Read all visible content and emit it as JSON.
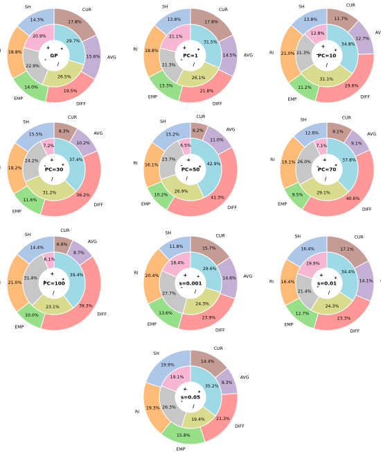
{
  "colors": {
    "AVG": "#c5b0d5",
    "DIFF": "#ff9896",
    "EMP": "#98df8a",
    "RI": "#ffbb78",
    "SH": "#aec7e8",
    "CUR": "#c49c94",
    "*": "#9edae5",
    "/": "#dbdb8d",
    "-": "#c7c7c7",
    "+": "#f7b6d2"
  },
  "chart_data": [
    {
      "type": "pie",
      "title": "GP",
      "outer": {
        "labels": [
          "CUR",
          "AVG",
          "DIFF",
          "EMP",
          "RI",
          "SH"
        ],
        "values": [
          17.8,
          15.6,
          19.5,
          14.0,
          18.8,
          14.3
        ]
      },
      "inner": {
        "labels": [
          "*",
          "/",
          "-",
          "+"
        ],
        "values": [
          29.7,
          26.5,
          22.9,
          20.9
        ]
      }
    },
    {
      "type": "pie",
      "title": "PC=1",
      "outer": {
        "labels": [
          "CUR",
          "AVG",
          "DIFF",
          "EMP",
          "RI",
          "SH"
        ],
        "values": [
          17.8,
          14.5,
          21.8,
          13.3,
          18.8,
          13.8
        ]
      },
      "inner": {
        "labels": [
          "*",
          "/",
          "-",
          "+"
        ],
        "values": [
          31.5,
          26.1,
          21.3,
          21.1
        ]
      }
    },
    {
      "type": "pie",
      "title": "PC=10",
      "outer": {
        "labels": [
          "CUR",
          "AVG",
          "DIFF",
          "EMP",
          "RI",
          "SH"
        ],
        "values": [
          11.7,
          12.7,
          29.6,
          11.2,
          21.0,
          13.8
        ]
      },
      "inner": {
        "labels": [
          "*",
          "/",
          "-",
          "+"
        ],
        "values": [
          34.8,
          31.1,
          21.3,
          12.8
        ]
      }
    },
    {
      "type": "pie",
      "title": "PC=30",
      "outer": {
        "labels": [
          "CUR",
          "AVG",
          "DIFF",
          "EMP",
          "RI",
          "SH"
        ],
        "values": [
          8.3,
          10.2,
          36.2,
          11.6,
          18.2,
          15.5
        ]
      },
      "inner": {
        "labels": [
          "*",
          "/",
          "-",
          "+"
        ],
        "values": [
          37.4,
          31.2,
          24.2,
          7.2
        ]
      }
    },
    {
      "type": "pie",
      "title": "PC=50",
      "outer": {
        "labels": [
          "CUR",
          "AVG",
          "DIFF",
          "EMP",
          "RI",
          "SH"
        ],
        "values": [
          6.2,
          11.0,
          41.3,
          10.2,
          16.1,
          15.2
        ]
      },
      "inner": {
        "labels": [
          "*",
          "/",
          "-",
          "+"
        ],
        "values": [
          42.9,
          26.9,
          23.7,
          6.5
        ]
      }
    },
    {
      "type": "pie",
      "title": "PC=70",
      "outer": {
        "labels": [
          "CUR",
          "AVG",
          "DIFF",
          "EMP",
          "RI",
          "SH"
        ],
        "values": [
          9.1,
          9.1,
          40.6,
          9.5,
          19.1,
          12.6
        ]
      },
      "inner": {
        "labels": [
          "*",
          "/",
          "-",
          "+"
        ],
        "values": [
          37.8,
          29.1,
          26.0,
          7.1
        ]
      }
    },
    {
      "type": "pie",
      "title": "PC=100",
      "outer": {
        "labels": [
          "CUR",
          "AVG",
          "DIFF",
          "EMP",
          "RI",
          "SH"
        ],
        "values": [
          6.6,
          8.7,
          39.3,
          10.0,
          21.0,
          14.4
        ]
      },
      "inner": {
        "labels": [
          "*",
          "/",
          "-",
          "+"
        ],
        "values": [
          39.4,
          23.1,
          31.4,
          6.1
        ]
      }
    },
    {
      "type": "pie",
      "title": "s=0.001",
      "outer": {
        "labels": [
          "CUR",
          "AVG",
          "DIFF",
          "EMP",
          "RI",
          "SH"
        ],
        "values": [
          15.7,
          14.6,
          23.9,
          13.6,
          20.4,
          11.8
        ]
      },
      "inner": {
        "labels": [
          "*",
          "/",
          "-",
          "+"
        ],
        "values": [
          29.6,
          24.3,
          27.7,
          18.4
        ]
      }
    },
    {
      "type": "pie",
      "title": "s=0.01",
      "outer": {
        "labels": [
          "CUR",
          "AVG",
          "DIFF",
          "EMP",
          "RI",
          "SH"
        ],
        "values": [
          17.1,
          14.1,
          23.3,
          12.7,
          16.4,
          16.4
        ]
      },
      "inner": {
        "labels": [
          "*",
          "/",
          "-",
          "+"
        ],
        "values": [
          34.4,
          24.3,
          21.4,
          19.9
        ]
      }
    },
    {
      "type": "pie",
      "title": "s=0.05",
      "outer": {
        "labels": [
          "CUR",
          "AVG",
          "DIFF",
          "EMP",
          "RI",
          "SH"
        ],
        "values": [
          14.4,
          9.3,
          21.3,
          15.8,
          19.3,
          19.9
        ]
      },
      "inner": {
        "labels": [
          "*",
          "/",
          "-",
          "+"
        ],
        "values": [
          35.2,
          19.4,
          26.3,
          19.1
        ]
      }
    }
  ]
}
